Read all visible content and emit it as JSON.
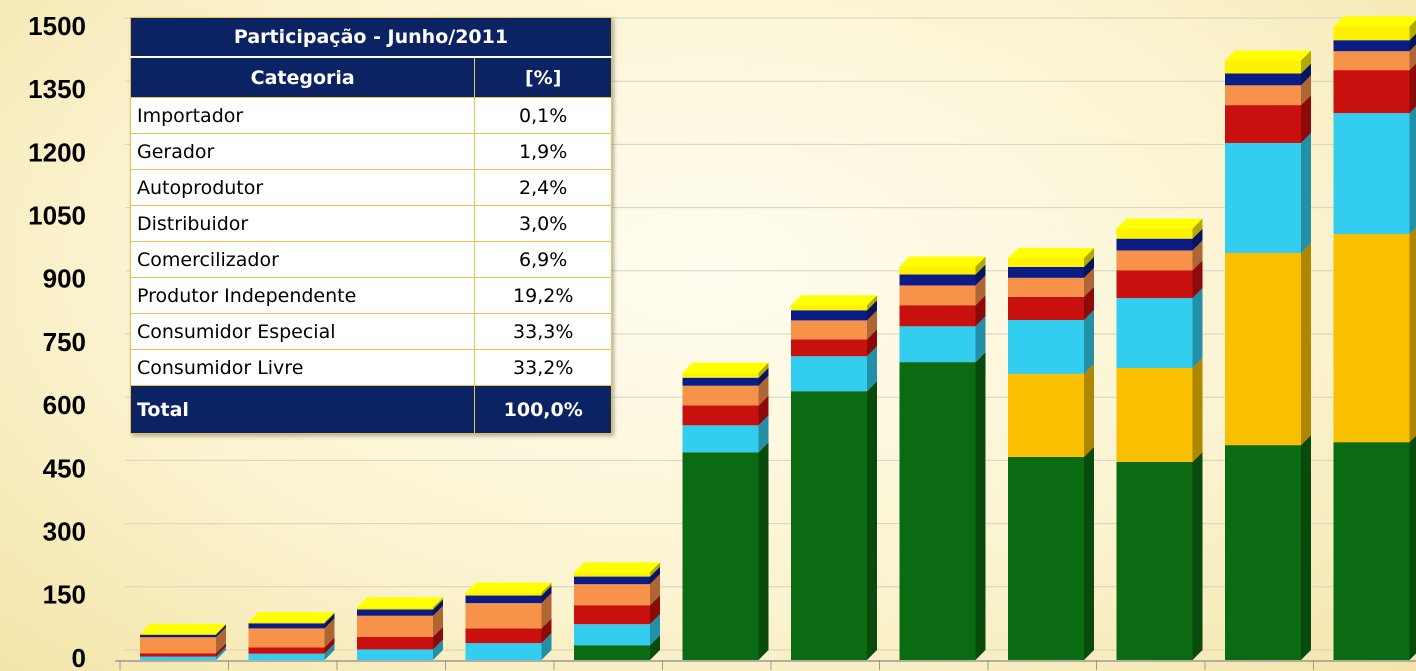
{
  "chart_data": {
    "type": "bar3d-stacked",
    "categories": [
      null,
      null,
      null,
      null,
      null,
      null,
      null,
      null,
      null,
      null,
      null,
      null
    ],
    "series": [
      {
        "color": "#0b6b12",
        "values": [
          0,
          0,
          0,
          0,
          35,
          493,
          638,
          707,
          482,
          470,
          510,
          517
        ]
      },
      {
        "color": "#f9bf00",
        "values": [
          0,
          0,
          0,
          0,
          0,
          0,
          0,
          0,
          197,
          223,
          456,
          494
        ]
      },
      {
        "color": "#33cdf0",
        "values": [
          8,
          15,
          25,
          40,
          50,
          64,
          83,
          85,
          128,
          166,
          261,
          287
        ]
      },
      {
        "color": "#c8100e",
        "values": [
          8,
          15,
          30,
          35,
          45,
          47,
          40,
          50,
          55,
          66,
          90,
          102
        ]
      },
      {
        "color": "#f7924a",
        "values": [
          38,
          45,
          50,
          60,
          50,
          47,
          45,
          47,
          45,
          47,
          47,
          45
        ]
      },
      {
        "color": "#0b1c86",
        "values": [
          6,
          12,
          15,
          18,
          18,
          19,
          24,
          26,
          26,
          28,
          28,
          26
        ]
      },
      {
        "color": "#fdf200",
        "values": [
          2,
          3,
          5,
          7,
          10,
          12,
          12,
          19,
          21,
          24,
          31,
          33
        ]
      }
    ],
    "ylim": [
      0,
      1500
    ],
    "yticks": [
      0,
      150,
      300,
      450,
      600,
      750,
      900,
      1050,
      1200,
      1350,
      1500
    ],
    "grid": true
  },
  "table": {
    "title": "Participação - Junho/2011",
    "header": [
      "Categoria",
      "[%]"
    ],
    "rows": [
      [
        "Importador",
        "0,1%"
      ],
      [
        "Gerador",
        "1,9%"
      ],
      [
        "Autoprodutor",
        "2,4%"
      ],
      [
        "Distribuidor",
        "3,0%"
      ],
      [
        "Comercilizador",
        "6,9%"
      ],
      [
        "Produtor Independente",
        "19,2%"
      ],
      [
        "Consumidor Especial",
        "33,3%"
      ],
      [
        "Consumidor Livre",
        "33,2%"
      ]
    ],
    "total": [
      "Total",
      "100,0%"
    ]
  }
}
